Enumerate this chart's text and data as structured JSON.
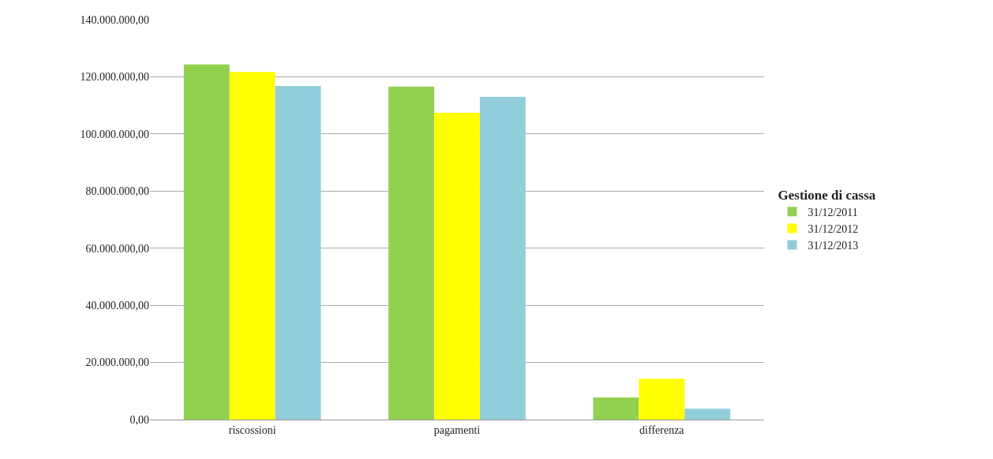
{
  "chart_data": {
    "type": "bar",
    "categories": [
      "riscossioni",
      "pagamenti",
      "differenza"
    ],
    "series": [
      {
        "name": "31/12/2011",
        "color": "#92d050",
        "values": [
          124300000,
          116600000,
          7700000
        ]
      },
      {
        "name": "31/12/2012",
        "color": "#ffff00",
        "values": [
          121700000,
          107400000,
          14300000
        ]
      },
      {
        "name": "31/12/2013",
        "color": "#92cddc",
        "values": [
          116800000,
          113000000,
          3800000
        ]
      }
    ],
    "legend_title": "Gestione di cassa",
    "legend": "right",
    "grid": "y",
    "ylim": [
      0,
      140000000
    ],
    "yticks": [
      {
        "value": 0,
        "label": "0,00"
      },
      {
        "value": 20000000,
        "label": "20.000.000,00"
      },
      {
        "value": 40000000,
        "label": "40.000.000,00"
      },
      {
        "value": 60000000,
        "label": "60.000.000,00"
      },
      {
        "value": 80000000,
        "label": "80.000.000,00"
      },
      {
        "value": 100000000,
        "label": "100.000.000,00"
      },
      {
        "value": 120000000,
        "label": "120.000.000,00"
      },
      {
        "value": 140000000,
        "label": "140.000.000,00"
      }
    ]
  }
}
